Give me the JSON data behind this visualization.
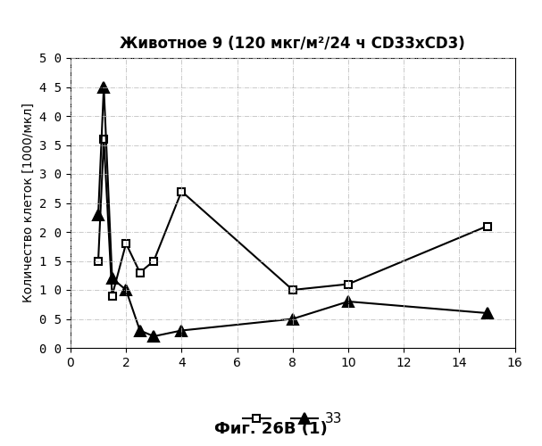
{
  "title": "Животное 9 (120 мкг/м²/24 ч CD33хCD3)",
  "ylabel": "Количество клеток [1000/мкл]",
  "fig_label": "Фиг. 26В (1)",
  "xlim": [
    0,
    16
  ],
  "ylim": [
    0,
    50
  ],
  "xticks": [
    0,
    2,
    4,
    6,
    8,
    10,
    12,
    14,
    16
  ],
  "ytick_values": [
    0,
    5,
    10,
    15,
    20,
    25,
    30,
    35,
    40,
    45,
    50
  ],
  "ytick_labels": [
    "0 0",
    "0 5",
    "1 0",
    "1 5",
    "2 0",
    "2 5",
    "3 0",
    "3 5",
    "4 0",
    "4 5",
    "5 0"
  ],
  "series_square": {
    "x": [
      1.0,
      1.2,
      1.5,
      2.0,
      2.5,
      3.0,
      4.0,
      8.0,
      10.0,
      15.0
    ],
    "y": [
      15,
      36,
      9,
      18,
      13,
      15,
      27,
      10,
      11,
      21
    ]
  },
  "series_triangle": {
    "x": [
      1.0,
      1.2,
      1.5,
      2.0,
      2.5,
      3.0,
      4.0,
      8.0,
      10.0,
      15.0
    ],
    "y": [
      23,
      45,
      12,
      10,
      3,
      2,
      3,
      5,
      8,
      6
    ]
  },
  "legend_label_square": "",
  "legend_label_triangle": "33",
  "line_color": "#000000",
  "background_color": "#ffffff",
  "grid_linestyle": "-.",
  "grid_color": "#bbbbbb",
  "title_fontsize": 12,
  "axis_fontsize": 10,
  "tick_fontsize": 10,
  "legend_fontsize": 11,
  "fig_label_fontsize": 13
}
